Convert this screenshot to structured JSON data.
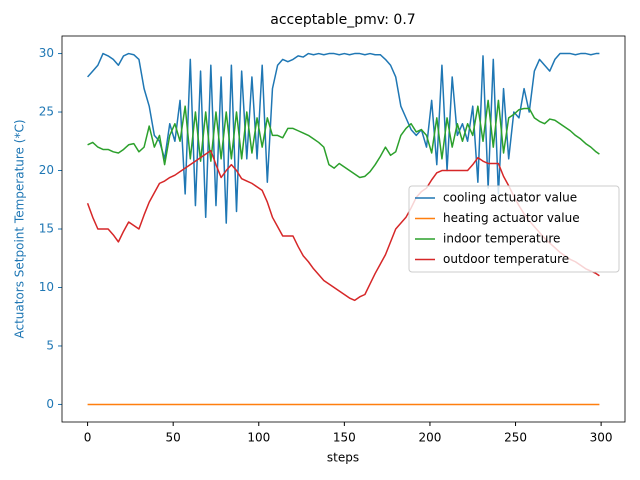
{
  "chart_data": {
    "type": "line",
    "title": "acceptable_pmv: 0.7",
    "x_label": "steps",
    "y_label": "Actuators Setpoint Temperature (*C)",
    "y_label_color": "#1f77b4",
    "x": [
      0,
      3,
      6,
      9,
      12,
      15,
      18,
      21,
      24,
      27,
      30,
      33,
      36,
      39,
      42,
      45,
      48,
      51,
      54,
      57,
      60,
      63,
      66,
      69,
      72,
      75,
      78,
      81,
      84,
      87,
      90,
      93,
      96,
      99,
      102,
      105,
      108,
      111,
      114,
      117,
      120,
      123,
      126,
      129,
      132,
      135,
      138,
      141,
      144,
      147,
      150,
      153,
      156,
      159,
      162,
      165,
      168,
      171,
      174,
      177,
      180,
      183,
      186,
      189,
      192,
      195,
      198,
      201,
      204,
      207,
      210,
      213,
      216,
      219,
      222,
      225,
      228,
      231,
      234,
      237,
      240,
      243,
      246,
      249,
      252,
      255,
      258,
      261,
      264,
      267,
      270,
      273,
      276,
      279,
      282,
      285,
      288,
      291,
      294,
      297,
      299
    ],
    "series": [
      {
        "name": "cooling actuator value",
        "color": "#1f77b4",
        "values": [
          28,
          28.5,
          29,
          30,
          29.8,
          29.5,
          29,
          29.8,
          30,
          29.9,
          29.5,
          27,
          25.5,
          23,
          22.5,
          21,
          24,
          22.5,
          26,
          18,
          29.5,
          17,
          28.5,
          16,
          29,
          17,
          28,
          15.5,
          29,
          16.5,
          28.5,
          21,
          28,
          21,
          29,
          19,
          27,
          29,
          29.5,
          29.3,
          29.5,
          29.8,
          29.7,
          30,
          29.9,
          30,
          29.9,
          30,
          30,
          29.9,
          30,
          29.9,
          30,
          30,
          29.9,
          30,
          29.9,
          29.9,
          29.5,
          29,
          28,
          25.5,
          24.5,
          23.5,
          23,
          23.5,
          22,
          26,
          20.5,
          29,
          20,
          28,
          23,
          24,
          22.5,
          25.5,
          19,
          29.8,
          18.5,
          29.5,
          18,
          27,
          21,
          25,
          24.5,
          27,
          25,
          28.5,
          29.5,
          29,
          28.5,
          29.5,
          30,
          30,
          30,
          29.9,
          30,
          30,
          29.9,
          30,
          30
        ]
      },
      {
        "name": "heating actuator value",
        "color": "#ff7f0e",
        "values": [
          0,
          0,
          0,
          0,
          0,
          0,
          0,
          0,
          0,
          0,
          0,
          0,
          0,
          0,
          0,
          0,
          0,
          0,
          0,
          0,
          0,
          0,
          0,
          0,
          0,
          0,
          0,
          0,
          0,
          0,
          0,
          0,
          0,
          0,
          0,
          0,
          0,
          0,
          0,
          0,
          0,
          0,
          0,
          0,
          0,
          0,
          0,
          0,
          0,
          0,
          0,
          0,
          0,
          0,
          0,
          0,
          0,
          0,
          0,
          0,
          0,
          0,
          0,
          0,
          0,
          0,
          0,
          0,
          0,
          0,
          0,
          0,
          0,
          0,
          0,
          0,
          0,
          0,
          0,
          0,
          0,
          0,
          0,
          0,
          0,
          0,
          0,
          0,
          0,
          0,
          0,
          0,
          0,
          0,
          0,
          0,
          0,
          0,
          0,
          0,
          0
        ]
      },
      {
        "name": "indoor temperature",
        "color": "#2ca02c",
        "values": [
          22.2,
          22.4,
          22,
          21.8,
          21.8,
          21.6,
          21.5,
          21.8,
          22.2,
          22.3,
          21.6,
          22,
          23.8,
          22,
          23,
          20.5,
          23,
          24,
          22.5,
          25.5,
          21,
          25,
          20.8,
          25,
          20.8,
          25,
          21,
          25,
          21,
          25,
          21,
          25,
          21.5,
          24.5,
          22,
          24.5,
          23,
          23,
          22.8,
          23.6,
          23.6,
          23.4,
          23.2,
          23,
          22.7,
          22.4,
          22,
          20.5,
          20.2,
          20.6,
          20.3,
          20,
          19.7,
          19.4,
          19.5,
          19.9,
          20.5,
          21.2,
          22,
          21.3,
          21.6,
          23,
          23.6,
          24,
          23.3,
          23.5,
          23,
          21.5,
          24.5,
          21,
          24.5,
          22,
          24,
          22.5,
          24,
          23,
          25.5,
          22.5,
          26,
          22,
          26,
          21.5,
          24.5,
          24.8,
          25.2,
          25.3,
          25.3,
          24.5,
          24.2,
          24,
          24.4,
          24.3,
          24,
          23.7,
          23.4,
          23,
          22.7,
          22.3,
          22,
          21.6,
          21.4
        ]
      },
      {
        "name": "outdoor temperature",
        "color": "#d62728",
        "values": [
          17.2,
          16,
          15,
          15,
          15,
          14.5,
          13.9,
          14.8,
          15.6,
          15.3,
          15,
          16.2,
          17.3,
          18.1,
          18.9,
          19.1,
          19.4,
          19.6,
          19.9,
          20.2,
          20.5,
          20.8,
          21.1,
          21.4,
          21.7,
          20.5,
          19.4,
          20,
          20.5,
          20,
          19.3,
          19.1,
          18.9,
          18.6,
          18.3,
          17.3,
          16,
          15.2,
          14.4,
          14.4,
          14.4,
          13.5,
          12.7,
          12.2,
          11.6,
          11.1,
          10.6,
          10.3,
          10,
          9.7,
          9.4,
          9.1,
          8.9,
          9.2,
          9.4,
          10.3,
          11.2,
          12,
          12.8,
          13.9,
          15,
          15.5,
          16,
          16.8,
          17.7,
          18.2,
          18.5,
          19.2,
          19.8,
          20,
          20,
          20,
          20,
          20,
          20,
          20.5,
          21.1,
          20.8,
          20.6,
          20.6,
          20.6,
          19.5,
          18.7,
          17.8,
          17,
          16.3,
          15.7,
          15.2,
          14.7,
          14.2,
          13.8,
          13.4,
          13,
          12.7,
          12.4,
          12.2,
          11.9,
          11.6,
          11.4,
          11.2,
          11
        ]
      }
    ],
    "xlim": [
      -14.95,
      313.95
    ],
    "ylim": [
      -1.5,
      31.5
    ],
    "xticks": [
      0,
      50,
      100,
      150,
      200,
      250,
      300
    ],
    "yticks": [
      0,
      5,
      10,
      15,
      20,
      25,
      30
    ],
    "grid": false,
    "legend": "center right"
  }
}
